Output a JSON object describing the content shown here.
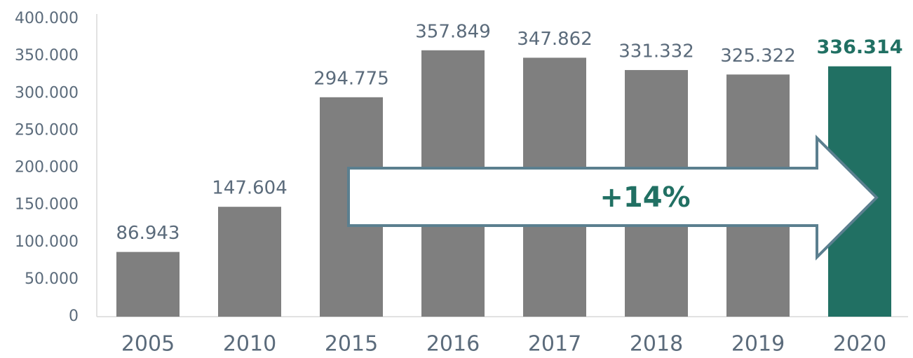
{
  "chart_data": {
    "type": "bar",
    "categories": [
      "2005",
      "2010",
      "2015",
      "2016",
      "2017",
      "2018",
      "2019",
      "2020"
    ],
    "values": [
      86943,
      147604,
      294775,
      357849,
      347862,
      331332,
      325322,
      336314
    ],
    "value_labels": [
      "86.943",
      "147.604",
      "294.775",
      "357.849",
      "347.862",
      "331.332",
      "325.322",
      "336.314"
    ],
    "colors": [
      "#7f7f7f",
      "#7f7f7f",
      "#7f7f7f",
      "#7f7f7f",
      "#7f7f7f",
      "#7f7f7f",
      "#7f7f7f",
      "#217063"
    ],
    "ylim": [
      0,
      400000
    ],
    "yticks": [
      {
        "value": 0,
        "label": "0"
      },
      {
        "value": 50000,
        "label": "50.000"
      },
      {
        "value": 100000,
        "label": "100.000"
      },
      {
        "value": 150000,
        "label": "150.000"
      },
      {
        "value": 200000,
        "label": "200.000"
      },
      {
        "value": 250000,
        "label": "250.000"
      },
      {
        "value": 300000,
        "label": "300.000"
      },
      {
        "value": 350000,
        "label": "350.000"
      },
      {
        "value": 400000,
        "label": "400.000"
      }
    ],
    "annotation": "+14%",
    "grid": false
  }
}
